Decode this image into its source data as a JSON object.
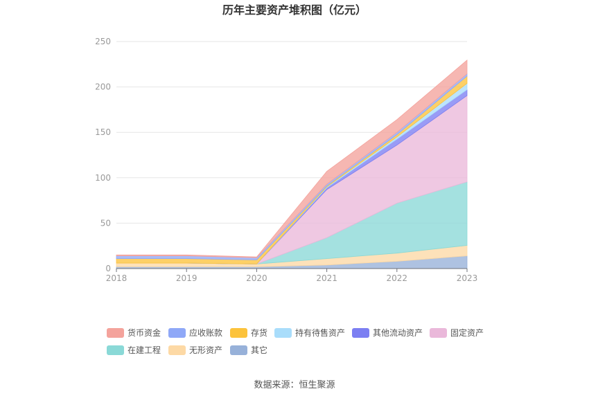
{
  "chart_data": {
    "type": "area",
    "title": "历年主要资产堆积图（亿元）",
    "x": [
      "2018",
      "2019",
      "2020",
      "2021",
      "2022",
      "2023"
    ],
    "ylim": [
      0,
      250
    ],
    "yticks": [
      "0",
      "50",
      "100",
      "150",
      "200",
      "250"
    ],
    "grid": true,
    "legend_position": "bottom",
    "stack_order_bottom_to_top": [
      "其它",
      "无形资产",
      "在建工程",
      "固定资产",
      "其他流动资产",
      "持有待售资产",
      "存货",
      "应收账款",
      "货币资金"
    ],
    "series": [
      {
        "name": "货币资金",
        "color": "#f4a39c",
        "values": [
          1.0,
          1.0,
          0.8,
          14.0,
          14.0,
          15.0
        ]
      },
      {
        "name": "应收账款",
        "color": "#8fa8f7",
        "values": [
          3.0,
          3.0,
          2.5,
          2.0,
          2.5,
          2.5
        ]
      },
      {
        "name": "存货",
        "color": "#fcc33c",
        "values": [
          5.0,
          5.0,
          4.5,
          1.0,
          2.5,
          8.0
        ]
      },
      {
        "name": "持有待售资产",
        "color": "#a9ddfb",
        "values": [
          0,
          0,
          0,
          1.0,
          2.5,
          7.0
        ]
      },
      {
        "name": "其他流动资产",
        "color": "#7c7ff2",
        "values": [
          0,
          0,
          0,
          2.0,
          6.5,
          6.5
        ]
      },
      {
        "name": "固定资产",
        "color": "#eab8da",
        "values": [
          0,
          0,
          0,
          53.0,
          64.0,
          95.0
        ]
      },
      {
        "name": "在建工程",
        "color": "#8ad9d7",
        "values": [
          0,
          0,
          0,
          23.0,
          55.0,
          70.0
        ]
      },
      {
        "name": "无形资产",
        "color": "#fdd9a5",
        "values": [
          4.0,
          4.0,
          3.0,
          7.0,
          9.0,
          11.5
        ]
      },
      {
        "name": "其它",
        "color": "#97b1d9",
        "values": [
          2.0,
          2.0,
          2.0,
          4.0,
          8.0,
          14.0
        ]
      }
    ]
  },
  "legend": [
    {
      "label": "货币资金",
      "color": "#f4a39c"
    },
    {
      "label": "应收账款",
      "color": "#8fa8f7"
    },
    {
      "label": "存货",
      "color": "#fcc33c"
    },
    {
      "label": "持有待售资产",
      "color": "#a9ddfb"
    },
    {
      "label": "其他流动资产",
      "color": "#7c7ff2"
    },
    {
      "label": "固定资产",
      "color": "#eab8da"
    },
    {
      "label": "在建工程",
      "color": "#8ad9d7"
    },
    {
      "label": "无形资产",
      "color": "#fdd9a5"
    },
    {
      "label": "其它",
      "color": "#97b1d9"
    }
  ],
  "source": "数据来源：恒生聚源"
}
